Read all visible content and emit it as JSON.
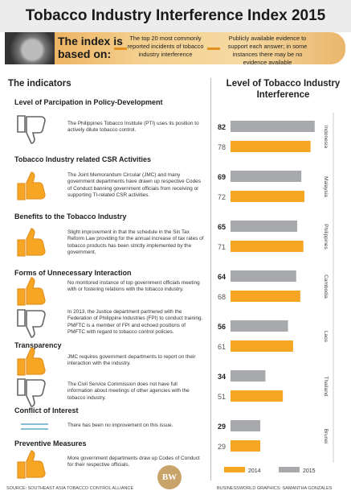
{
  "title": "Tobacco Industry Interference Index 2015",
  "banner": {
    "lead": "The index is based on:",
    "point1": "The top 20 most commonly reported incidents of tobacco industry interference",
    "point2": "Publicly available evidence to support each answer; in some instances there may be no evidence available"
  },
  "left_heading": "The indicators",
  "indicators": [
    {
      "category": "Level of Parcipation in Policy-Development",
      "items": [
        {
          "icon": "thumbs-down-icon",
          "text": "The Philippines Tobacco Institute (PTI) uses its position to actively dilute tobacco control."
        }
      ]
    },
    {
      "category": "Tobacco Industry related CSR Activities",
      "items": [
        {
          "icon": "thumbs-up-icon",
          "text": "The Joint Memorandum Circular (JMC) and many government departments have drawn up respective Codes of Conduct banning government officials from receiving or supporting TI-related CSR activities."
        }
      ]
    },
    {
      "category": "Benefits to the Tobacco Industry",
      "items": [
        {
          "icon": "thumbs-up-icon",
          "text": "Slight improvement in that the schedule in the Sin Tax Reform Law providing for the annual increase of tax rates of tobacco products has been strictly implemented by the government."
        }
      ]
    },
    {
      "category": "Forms of Unnecessary Interaction",
      "items": [
        {
          "icon": "thumbs-up-icon",
          "text": "No monitored instance of top government officials meeting with or fostering relations with the tobacco industry."
        },
        {
          "icon": "thumbs-down-icon",
          "text": "In 2013, the Justice department partnered with the Federation of Philippine Industries (FPI) to conduct training. PMFTC is a member of FPI and echoed positions of PMFTC with regard to tobacco control policies."
        }
      ]
    },
    {
      "category": "Transparency",
      "items": [
        {
          "icon": "thumbs-up-icon",
          "text": "JMC requires government departments to report on their interaction with the industry."
        },
        {
          "icon": "thumbs-down-icon",
          "text": "The Civil Service Commission does not have full information about meetings of other agencies with the tobacco industry."
        }
      ]
    },
    {
      "category": "Conflict of Interest",
      "items": [
        {
          "icon": "equals-icon",
          "text": "There has been no improvement on this issue."
        }
      ]
    },
    {
      "category": "Preventive Measures",
      "items": [
        {
          "icon": "thumbs-up-icon",
          "text": "More government departments draw up Codes of Conduct for their respective officials."
        }
      ]
    }
  ],
  "chart_data": {
    "type": "bar",
    "orientation": "horizontal",
    "title": "Level of Tobacco Industry Interference",
    "categories": [
      "Indonesia",
      "Malaysia",
      "Philippines",
      "Cambodia",
      "Laos",
      "Thailand",
      "Brunei"
    ],
    "series": [
      {
        "name": "2015",
        "color": "#a7a9ac",
        "values": [
          82,
          69,
          65,
          64,
          56,
          34,
          29
        ]
      },
      {
        "name": "2014",
        "color": "#f6a623",
        "values": [
          78,
          72,
          71,
          68,
          61,
          51,
          29
        ]
      }
    ],
    "legend": "bottom",
    "grid": false
  },
  "colors": {
    "accent": "#f6a623",
    "gray": "#a7a9ac"
  },
  "footer": {
    "source": "SOURCE: SOUTHEAST ASIA TOBACCO CONTROL ALLIANCE",
    "credit": "BUSINESSWORLD GRAPHICS: SAMANTHA GONZALES",
    "logo": "BW"
  }
}
